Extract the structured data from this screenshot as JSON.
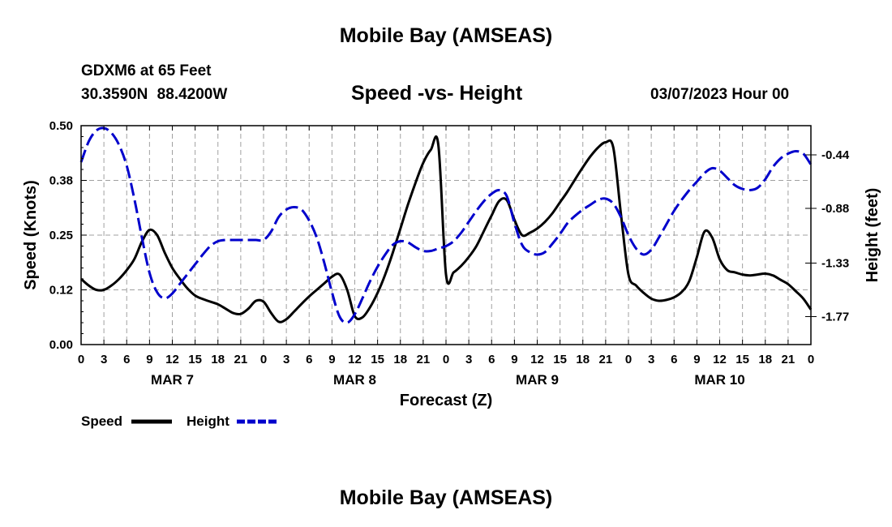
{
  "header": {
    "title": "Mobile Bay (AMSEAS)",
    "station": "GDXM6 at 65 Feet",
    "coords": "30.3590N  88.4200W",
    "subtitle": "Speed -vs- Height",
    "run_time": "03/07/2023 Hour 00"
  },
  "footer": {
    "title": "Mobile Bay (AMSEAS)"
  },
  "chart_data": {
    "type": "line",
    "title": "Speed -vs- Height",
    "xlabel": "Forecast (Z)",
    "ylabel_left": "Speed (Knots)",
    "ylabel_right": "Height (feet)",
    "x_unit": "forecast hour",
    "xlim": [
      0,
      96
    ],
    "ylim_left": [
      0,
      0.5
    ],
    "ylim_right": [
      -2.0,
      -0.2
    ],
    "x_ticks": [
      0,
      3,
      6,
      9,
      12,
      15,
      18,
      21,
      24,
      27,
      30,
      33,
      36,
      39,
      42,
      45,
      48,
      51,
      54,
      57,
      60,
      63,
      66,
      69,
      72,
      75,
      78,
      81,
      84,
      87,
      90,
      93,
      96
    ],
    "x_tick_labels": [
      "0",
      "3",
      "6",
      "9",
      "12",
      "15",
      "18",
      "21",
      "0",
      "3",
      "6",
      "9",
      "12",
      "15",
      "18",
      "21",
      "0",
      "3",
      "6",
      "9",
      "12",
      "15",
      "18",
      "21",
      "0",
      "3",
      "6",
      "9",
      "12",
      "15",
      "18",
      "21",
      "0"
    ],
    "day_labels": [
      {
        "label": "MAR 7",
        "x": 12
      },
      {
        "label": "MAR 8",
        "x": 36
      },
      {
        "label": "MAR 9",
        "x": 60
      },
      {
        "label": "MAR 10",
        "x": 84
      }
    ],
    "y_left_ticks": [
      0,
      0.125,
      0.25,
      0.375,
      0.5
    ],
    "y_left_tick_labels": [
      "0.00",
      "0.12",
      "0.25",
      "0.38",
      "0.50"
    ],
    "y_right_ticks": [
      -0.44,
      -0.88,
      -1.33,
      -1.77
    ],
    "y_right_tick_labels": [
      "-0.44",
      "-0.88",
      "-1.33",
      "-1.77"
    ],
    "grid": true,
    "legend": [
      {
        "name": "Speed",
        "color": "#000000",
        "style": "solid"
      },
      {
        "name": "Height",
        "color": "#0000cc",
        "style": "dashed"
      }
    ],
    "series": [
      {
        "name": "Speed",
        "axis": "left",
        "color": "#000000",
        "style": "solid",
        "x": [
          0,
          1,
          2,
          3,
          4,
          5,
          6,
          7,
          8,
          9,
          10,
          11,
          12,
          13,
          14,
          15,
          16,
          17,
          18,
          19,
          20,
          21,
          22,
          23,
          24,
          25,
          26,
          27,
          28,
          29,
          30,
          31,
          32,
          33,
          34,
          35,
          36,
          37,
          38,
          39,
          40,
          41,
          42,
          43,
          44,
          45,
          46,
          47,
          48,
          49,
          50,
          51,
          52,
          53,
          54,
          55,
          56,
          57,
          58,
          59,
          60,
          61,
          62,
          63,
          64,
          65,
          66,
          67,
          68,
          69,
          70,
          71,
          72,
          73,
          74,
          75,
          76,
          77,
          78,
          79,
          80,
          81,
          82,
          83,
          84,
          85,
          86,
          87,
          88,
          89,
          90,
          91,
          92,
          93,
          94,
          95,
          96
        ],
        "values": [
          0.15,
          0.135,
          0.125,
          0.125,
          0.135,
          0.15,
          0.17,
          0.195,
          0.235,
          0.262,
          0.25,
          0.21,
          0.175,
          0.15,
          0.128,
          0.112,
          0.104,
          0.098,
          0.092,
          0.082,
          0.072,
          0.07,
          0.082,
          0.1,
          0.098,
          0.072,
          0.052,
          0.058,
          0.075,
          0.093,
          0.11,
          0.125,
          0.14,
          0.155,
          0.16,
          0.125,
          0.065,
          0.062,
          0.085,
          0.118,
          0.16,
          0.21,
          0.265,
          0.32,
          0.37,
          0.415,
          0.445,
          0.455,
          0.16,
          0.165,
          0.18,
          0.2,
          0.225,
          0.26,
          0.295,
          0.328,
          0.33,
          0.285,
          0.25,
          0.255,
          0.265,
          0.28,
          0.3,
          0.325,
          0.35,
          0.378,
          0.405,
          0.43,
          0.45,
          0.462,
          0.45,
          0.3,
          0.16,
          0.135,
          0.118,
          0.105,
          0.1,
          0.102,
          0.108,
          0.12,
          0.145,
          0.2,
          0.258,
          0.245,
          0.195,
          0.17,
          0.165,
          0.16,
          0.158,
          0.16,
          0.162,
          0.158,
          0.148,
          0.138,
          0.122,
          0.105,
          0.08
        ]
      },
      {
        "name": "Height",
        "axis": "right",
        "color": "#0000cc",
        "style": "dashed",
        "x": [
          0,
          1,
          2,
          3,
          4,
          5,
          6,
          7,
          8,
          9,
          10,
          11,
          12,
          13,
          14,
          15,
          16,
          17,
          18,
          19,
          20,
          21,
          22,
          23,
          24,
          25,
          26,
          27,
          28,
          29,
          30,
          31,
          32,
          33,
          34,
          35,
          36,
          37,
          38,
          39,
          40,
          41,
          42,
          43,
          44,
          45,
          46,
          47,
          48,
          49,
          50,
          51,
          52,
          53,
          54,
          55,
          56,
          57,
          58,
          59,
          60,
          61,
          62,
          63,
          64,
          65,
          66,
          67,
          68,
          69,
          70,
          71,
          72,
          73,
          74,
          75,
          76,
          77,
          78,
          79,
          80,
          81,
          82,
          83,
          84,
          85,
          86,
          87,
          88,
          89,
          90,
          91,
          92,
          93,
          94,
          95,
          96
        ],
        "values": [
          -0.5,
          -0.33,
          -0.24,
          -0.22,
          -0.26,
          -0.36,
          -0.53,
          -0.8,
          -1.12,
          -1.41,
          -1.57,
          -1.62,
          -1.58,
          -1.5,
          -1.42,
          -1.34,
          -1.26,
          -1.19,
          -1.15,
          -1.14,
          -1.14,
          -1.14,
          -1.14,
          -1.14,
          -1.14,
          -1.07,
          -0.95,
          -0.89,
          -0.87,
          -0.89,
          -0.98,
          -1.12,
          -1.33,
          -1.57,
          -1.77,
          -1.82,
          -1.75,
          -1.62,
          -1.48,
          -1.36,
          -1.26,
          -1.18,
          -1.15,
          -1.16,
          -1.2,
          -1.23,
          -1.23,
          -1.21,
          -1.19,
          -1.15,
          -1.08,
          -0.99,
          -0.9,
          -0.82,
          -0.76,
          -0.73,
          -0.78,
          -1.0,
          -1.18,
          -1.24,
          -1.26,
          -1.24,
          -1.17,
          -1.09,
          -1.0,
          -0.94,
          -0.89,
          -0.85,
          -0.81,
          -0.8,
          -0.84,
          -0.95,
          -1.1,
          -1.21,
          -1.26,
          -1.22,
          -1.12,
          -1.01,
          -0.9,
          -0.81,
          -0.73,
          -0.66,
          -0.59,
          -0.55,
          -0.57,
          -0.63,
          -0.69,
          -0.72,
          -0.73,
          -0.71,
          -0.64,
          -0.54,
          -0.47,
          -0.43,
          -0.41,
          -0.43,
          -0.52
        ]
      }
    ]
  }
}
